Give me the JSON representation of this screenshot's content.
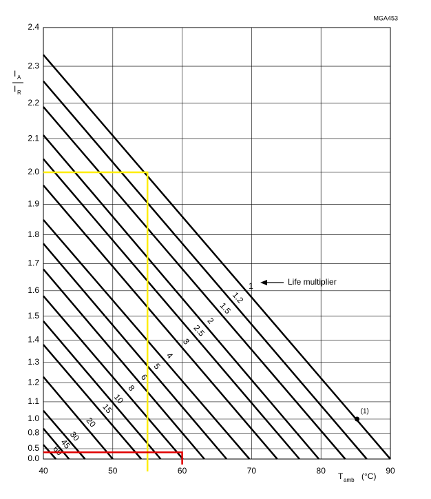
{
  "chart_data": {
    "type": "line",
    "code": "MGA453",
    "y_label": {
      "numerator": "I",
      "numerator_sub": "A",
      "denominator": "I",
      "denominator_sub": "R"
    },
    "x_label": {
      "main": "T",
      "sub": "amb",
      "unit": "(°C)"
    },
    "xlim": [
      40,
      90
    ],
    "xticks": [
      40,
      50,
      60,
      70,
      80,
      90
    ],
    "ylim": [
      0,
      2.4
    ],
    "yticks": [
      {
        "value": 0,
        "label": "0.0"
      },
      0.5,
      0.8,
      {
        "value": 1,
        "label": "1.0"
      },
      1.1,
      1.2,
      1.3,
      1.4,
      1.5,
      1.6,
      1.7,
      1.8,
      1.9,
      {
        "value": 2,
        "label": "2.0"
      },
      2.1,
      2.2,
      2.3,
      2.4
    ],
    "grid": true,
    "series": [
      {
        "name": "1",
        "color": "#000000",
        "x": [
          40,
          90
        ],
        "values": [
          2.33,
          0
        ]
      },
      {
        "name": "1.2",
        "color": "#000000",
        "x": [
          40,
          86.6
        ],
        "values": [
          2.26,
          0
        ]
      },
      {
        "name": "1.5",
        "color": "#000000",
        "x": [
          40,
          83.5
        ],
        "values": [
          2.19,
          0
        ]
      },
      {
        "name": "2",
        "color": "#000000",
        "x": [
          40,
          79.7
        ],
        "values": [
          2.11,
          0
        ]
      },
      {
        "name": "2.5",
        "color": "#000000",
        "x": [
          40,
          76.9
        ],
        "values": [
          2.04,
          0
        ]
      },
      {
        "name": "3",
        "color": "#000000",
        "x": [
          40,
          73.7
        ],
        "values": [
          1.96,
          0
        ]
      },
      {
        "name": "4",
        "color": "#000000",
        "x": [
          40,
          69.7
        ],
        "values": [
          1.85,
          0
        ]
      },
      {
        "name": "5",
        "color": "#000000",
        "x": [
          40,
          66.4
        ],
        "values": [
          1.77,
          0
        ]
      },
      {
        "name": "6",
        "color": "#000000",
        "x": [
          40,
          63.2
        ],
        "values": [
          1.68,
          0
        ]
      },
      {
        "name": "8",
        "color": "#000000",
        "x": [
          40,
          60.1
        ],
        "values": [
          1.58,
          0
        ]
      },
      {
        "name": "10",
        "color": "#000000",
        "x": [
          40,
          56.9
        ],
        "values": [
          1.48,
          0
        ]
      },
      {
        "name": "15",
        "color": "#000000",
        "x": [
          40,
          54.1
        ],
        "values": [
          1.38,
          0
        ]
      },
      {
        "name": "20",
        "color": "#000000",
        "x": [
          40,
          50.0
        ],
        "values": [
          1.23,
          0
        ]
      },
      {
        "name": "30",
        "color": "#000000",
        "x": [
          40,
          46.0
        ],
        "values": [
          1.05,
          0
        ]
      },
      {
        "name": "45",
        "color": "#000000",
        "x": [
          40,
          43.7
        ],
        "values": [
          0.87,
          0
        ]
      },
      {
        "name": "60",
        "color": "#000000",
        "x": [
          40,
          41.8
        ],
        "values": [
          0.59,
          0
        ]
      }
    ],
    "guides": [
      {
        "color": "#ffee00",
        "x": [
          40,
          55,
          55
        ],
        "values": [
          2,
          2,
          0
        ]
      },
      {
        "color": "#e00000",
        "x": [
          40,
          60,
          60
        ],
        "values": [
          0.4,
          0.4,
          0
        ]
      }
    ],
    "annotation": "Life multiplier",
    "point": {
      "label": "(1)",
      "x": 85.2,
      "value": 1.0
    }
  }
}
